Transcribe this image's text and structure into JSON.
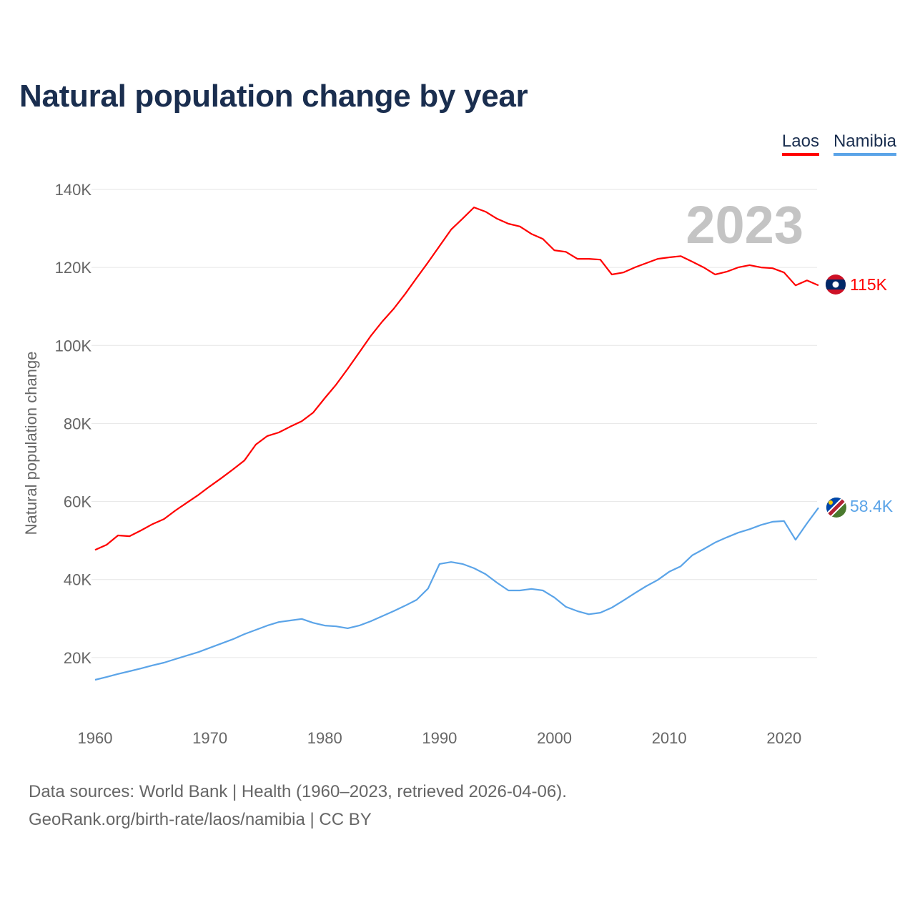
{
  "title": "Natural population change by year",
  "legend": [
    {
      "label": "Laos",
      "color": "#ff0000"
    },
    {
      "label": "Namibia",
      "color": "#5ba4e8"
    }
  ],
  "year_watermark": "2023",
  "end_labels": {
    "laos": "115K",
    "namibia": "58.4K"
  },
  "flag_icons": {
    "laos": "laos-flag-icon",
    "namibia": "namibia-flag-icon"
  },
  "source": {
    "line1": "Data sources: World Bank | Health (1960–2023, retrieved 2026-04-06).",
    "line2": "GeoRank.org/birth-rate/laos/namibia | CC BY"
  },
  "chart_data": {
    "type": "line",
    "title": "Natural population change by year",
    "xlabel": "",
    "ylabel": "Natural population change",
    "xlim": [
      1960,
      2023
    ],
    "ylim": [
      0,
      140000
    ],
    "x_ticks": [
      1960,
      1970,
      1980,
      1990,
      2000,
      2010,
      2020
    ],
    "x_tick_labels": [
      "1960",
      "1970",
      "1980",
      "1990",
      "2000",
      "2010",
      "2020"
    ],
    "y_ticks": [
      20000,
      40000,
      60000,
      80000,
      100000,
      120000,
      140000
    ],
    "y_tick_labels": [
      "20K",
      "40K",
      "60K",
      "80K",
      "100K",
      "120K",
      "140K"
    ],
    "grid": true,
    "legend_position": "top-right",
    "x_start": 1960,
    "series": [
      {
        "name": "Laos",
        "color": "#ff0000",
        "values": [
          47600,
          48900,
          51300,
          51100,
          52600,
          54200,
          55500,
          57700,
          59700,
          61700,
          63900,
          66000,
          68200,
          70500,
          74600,
          76800,
          77700,
          79200,
          80600,
          82800,
          86500,
          90000,
          94000,
          98200,
          102400,
          106100,
          109400,
          113200,
          117300,
          121300,
          125500,
          129700,
          132500,
          135400,
          134300,
          132500,
          131200,
          130500,
          128600,
          127300,
          124400,
          124000,
          122200,
          122200,
          122000,
          118200,
          118700,
          120000,
          121100,
          122200,
          122600,
          122900,
          121500,
          120000,
          118200,
          118900,
          120000,
          120600,
          120000,
          119800,
          118700,
          115400,
          116700,
          115400
        ]
      },
      {
        "name": "Namibia",
        "color": "#5ba4e8",
        "values": [
          14300,
          15000,
          15800,
          16500,
          17200,
          18000,
          18700,
          19600,
          20500,
          21400,
          22500,
          23600,
          24700,
          26000,
          27100,
          28200,
          29100,
          29500,
          29900,
          28900,
          28200,
          28000,
          27500,
          28200,
          29300,
          30600,
          31900,
          33300,
          34800,
          37700,
          44000,
          44500,
          44000,
          42900,
          41400,
          39200,
          37200,
          37200,
          37600,
          37200,
          35400,
          33000,
          31900,
          31100,
          31500,
          32800,
          34600,
          36500,
          38300,
          39900,
          42000,
          43400,
          46200,
          47800,
          49500,
          50800,
          52000,
          52900,
          54000,
          54800,
          55000,
          50200,
          54400,
          58400
        ]
      }
    ]
  }
}
